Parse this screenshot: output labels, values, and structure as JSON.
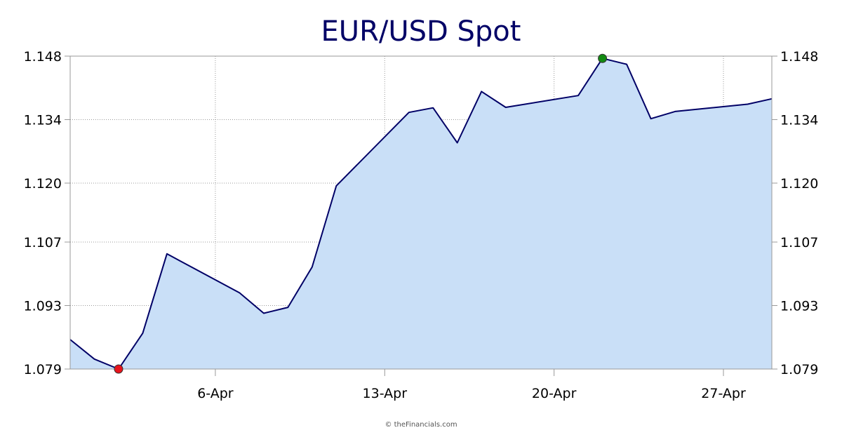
{
  "chart_data": {
    "type": "area",
    "title": "EUR/USD Spot",
    "xlabel": "",
    "ylabel": "",
    "ylim": [
      1.079,
      1.148
    ],
    "y_ticks": [
      "1.148",
      "1.134",
      "1.120",
      "1.107",
      "1.093",
      "1.079"
    ],
    "x_ticks": [
      {
        "day": 6,
        "label": "6-Apr"
      },
      {
        "day": 13,
        "label": "13-Apr"
      },
      {
        "day": 20,
        "label": "20-Apr"
      },
      {
        "day": 27,
        "label": "27-Apr"
      }
    ],
    "xlim": [
      0,
      29
    ],
    "grid": true,
    "axes": "left-and-right",
    "series": [
      {
        "x": [
          0,
          1,
          2,
          3,
          4,
          7,
          8,
          9,
          10,
          11,
          14,
          15,
          16,
          17,
          18,
          21,
          22,
          23,
          24,
          25,
          28,
          29
        ],
        "values": [
          1.0855,
          1.0812,
          1.079,
          1.0869,
          1.1044,
          1.0958,
          1.0913,
          1.0926,
          1.1015,
          1.1194,
          1.1356,
          1.1366,
          1.1289,
          1.1402,
          1.1367,
          1.1393,
          1.1475,
          1.1462,
          1.1342,
          1.1358,
          1.1374,
          1.1386
        ],
        "line_color": "#000066",
        "fill_color": "#c9dff7"
      }
    ],
    "markers": [
      {
        "label": "low",
        "x": 2,
        "value": 1.079,
        "color": "#e8141c"
      },
      {
        "label": "high",
        "x": 22,
        "value": 1.1475,
        "color": "#128a12"
      }
    ]
  },
  "footer": {
    "credit": "© theFinancials.com"
  }
}
